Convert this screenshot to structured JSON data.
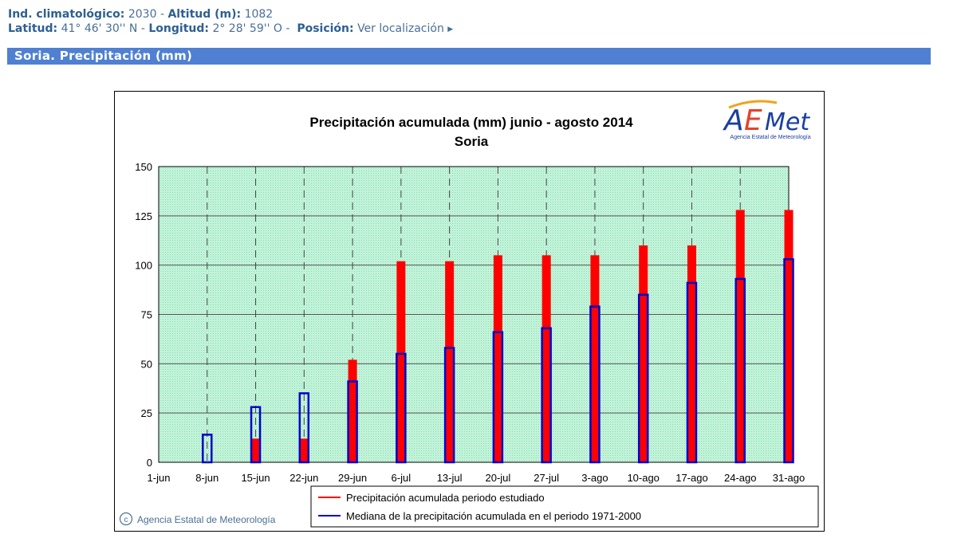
{
  "header": {
    "ind_label": "Ind. climatológico:",
    "ind_value": "2030",
    "alt_label": "Altitud (m):",
    "alt_value": "1082",
    "lat_label": "Latitud:",
    "lat_value": "41° 46' 30'' N",
    "lon_label": "Longitud:",
    "lon_value": "2° 28' 59'' O",
    "pos_label": "Posición:",
    "pos_link": "Ver localización",
    "sep": "-"
  },
  "section_title": "Soria. Precipitación (mm)",
  "colors": {
    "studied": "#ff0000",
    "median": "#0000cc",
    "plot_bg": "#b4f0d2",
    "title_bar": "#4f80d1"
  },
  "logo": {
    "text": "AEMet",
    "subtitle": "Agencia Estatal de Meteorología"
  },
  "copyright": "Agencia Estatal de Meteorología",
  "chart_data": {
    "type": "bar",
    "title": "Precipitación acumulada (mm) junio - agosto 2014",
    "subtitle": "Soria",
    "xlabel": "",
    "ylabel": "",
    "ylim": [
      0,
      150
    ],
    "yticks": [
      0,
      25,
      50,
      75,
      100,
      125,
      150
    ],
    "grid": true,
    "legend_position": "bottom",
    "categories": [
      "1-jun",
      "8-jun",
      "15-jun",
      "22-jun",
      "29-jun",
      "6-jul",
      "13-jul",
      "20-jul",
      "27-jul",
      "3-ago",
      "10-ago",
      "17-ago",
      "24-ago",
      "31-ago"
    ],
    "series": [
      {
        "name": "Precipitación acumulada periodo estudiado",
        "style": "filled-bar",
        "values": [
          0,
          0,
          12,
          12,
          52,
          102,
          102,
          105,
          105,
          105,
          110,
          110,
          128,
          128
        ]
      },
      {
        "name": "Mediana de la precipitación acumulada en el periodo 1971-2000",
        "style": "outline-bar",
        "values": [
          0,
          14,
          28,
          35,
          41,
          55,
          58,
          66,
          68,
          79,
          85,
          91,
          93,
          103
        ]
      }
    ]
  }
}
